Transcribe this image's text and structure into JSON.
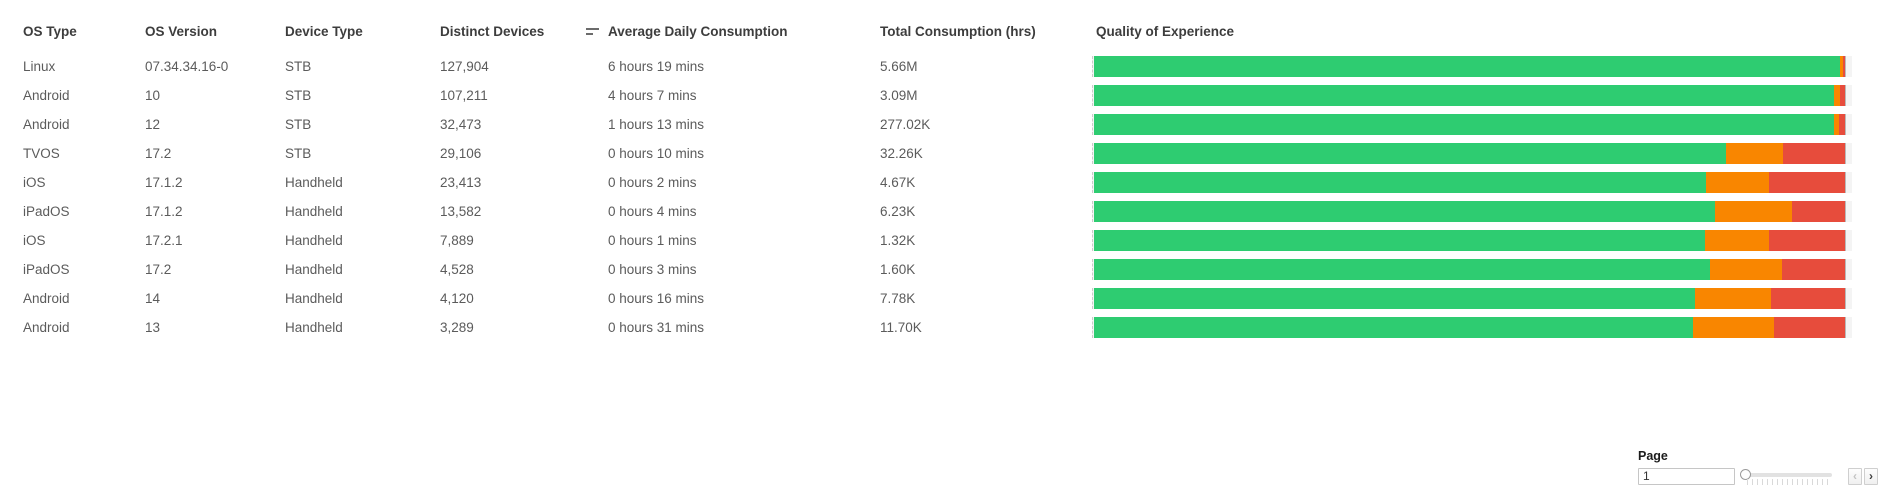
{
  "table": {
    "columns": [
      {
        "label": "OS Type"
      },
      {
        "label": "OS Version"
      },
      {
        "label": "Device Type"
      },
      {
        "label": "Distinct Devices"
      },
      {
        "label": "Average Daily Consumption",
        "sort_icon": "sort-descending"
      },
      {
        "label": "Total Consumption (hrs)"
      },
      {
        "label": "Quality of Experience"
      }
    ],
    "rows": [
      {
        "os_type": "Linux",
        "os_version": "07.34.34.16-0",
        "device_type": "STB",
        "distinct_devices": "127,904",
        "avg_daily_consumption": "6 hours 19 mins",
        "total_consumption": "5.66M",
        "qoe": {
          "green_pct": 99.3,
          "orange_pct": 0.45,
          "red_pct": 0.25
        }
      },
      {
        "os_type": "Android",
        "os_version": "10",
        "device_type": "STB",
        "distinct_devices": "107,211",
        "avg_daily_consumption": "4 hours 7 mins",
        "total_consumption": "3.09M",
        "qoe": {
          "green_pct": 98.5,
          "orange_pct": 0.8,
          "red_pct": 0.7
        }
      },
      {
        "os_type": "Android",
        "os_version": "12",
        "device_type": "STB",
        "distinct_devices": "32,473",
        "avg_daily_consumption": "1 hours 13 mins",
        "total_consumption": "277.02K",
        "qoe": {
          "green_pct": 98.6,
          "orange_pct": 0.6,
          "red_pct": 0.8
        }
      },
      {
        "os_type": "TVOS",
        "os_version": "17.2",
        "device_type": "STB",
        "distinct_devices": "29,106",
        "avg_daily_consumption": "0 hours 10 mins",
        "total_consumption": "32.26K",
        "qoe": {
          "green_pct": 84.2,
          "orange_pct": 7.6,
          "red_pct": 8.2
        }
      },
      {
        "os_type": "iOS",
        "os_version": "17.1.2",
        "device_type": "Handheld",
        "distinct_devices": "23,413",
        "avg_daily_consumption": "0 hours 2 mins",
        "total_consumption": "4.67K",
        "qoe": {
          "green_pct": 81.5,
          "orange_pct": 8.4,
          "red_pct": 10.1
        }
      },
      {
        "os_type": "iPadOS",
        "os_version": "17.1.2",
        "device_type": "Handheld",
        "distinct_devices": "13,582",
        "avg_daily_consumption": "0 hours 4 mins",
        "total_consumption": "6.23K",
        "qoe": {
          "green_pct": 82.7,
          "orange_pct": 10.3,
          "red_pct": 7.0
        }
      },
      {
        "os_type": "iOS",
        "os_version": "17.2.1",
        "device_type": "Handheld",
        "distinct_devices": "7,889",
        "avg_daily_consumption": "0 hours 1 mins",
        "total_consumption": "1.32K",
        "qoe": {
          "green_pct": 81.3,
          "orange_pct": 8.6,
          "red_pct": 10.1
        }
      },
      {
        "os_type": "iPadOS",
        "os_version": "17.2",
        "device_type": "Handheld",
        "distinct_devices": "4,528",
        "avg_daily_consumption": "0 hours 3 mins",
        "total_consumption": "1.60K",
        "qoe": {
          "green_pct": 82.0,
          "orange_pct": 9.6,
          "red_pct": 8.4
        }
      },
      {
        "os_type": "Android",
        "os_version": "14",
        "device_type": "Handheld",
        "distinct_devices": "4,120",
        "avg_daily_consumption": "0 hours 16 mins",
        "total_consumption": "7.78K",
        "qoe": {
          "green_pct": 80.0,
          "orange_pct": 10.2,
          "red_pct": 9.8
        }
      },
      {
        "os_type": "Android",
        "os_version": "13",
        "device_type": "Handheld",
        "distinct_devices": "3,289",
        "avg_daily_consumption": "0 hours 31 mins",
        "total_consumption": "11.70K",
        "qoe": {
          "green_pct": 79.8,
          "orange_pct": 10.7,
          "red_pct": 9.5
        }
      }
    ]
  },
  "chart_data": {
    "type": "bar",
    "subtype": "horizontal-stacked-100pct",
    "title": "Quality of Experience",
    "categories": [
      "Linux 07.34.34.16-0",
      "Android 10",
      "Android 12",
      "TVOS 17.2",
      "iOS 17.1.2",
      "iPadOS 17.1.2",
      "iOS 17.2.1",
      "iPadOS 17.2",
      "Android 14",
      "Android 13"
    ],
    "series": [
      {
        "name": "green-segment",
        "color": "#2ecc71",
        "values": [
          99.3,
          98.5,
          98.6,
          84.2,
          81.5,
          82.7,
          81.3,
          82.0,
          80.0,
          79.8
        ]
      },
      {
        "name": "orange-segment",
        "color": "#f98600",
        "values": [
          0.45,
          0.8,
          0.6,
          7.6,
          8.4,
          10.3,
          8.6,
          9.6,
          10.2,
          10.7
        ]
      },
      {
        "name": "red-segment",
        "color": "#e74c3c",
        "values": [
          0.25,
          0.7,
          0.8,
          8.2,
          10.1,
          7.0,
          10.1,
          8.4,
          9.8,
          9.5
        ]
      }
    ],
    "xlim": [
      0,
      100
    ],
    "grid": "vertical-faint",
    "legend": "none"
  },
  "colors": {
    "green": "#2ecc71",
    "orange": "#f98600",
    "red": "#e74c3c",
    "plot_bg": "#f4f4f4"
  },
  "pagination": {
    "label": "Page",
    "value": "1",
    "prev_label": "‹",
    "next_label": "›"
  }
}
